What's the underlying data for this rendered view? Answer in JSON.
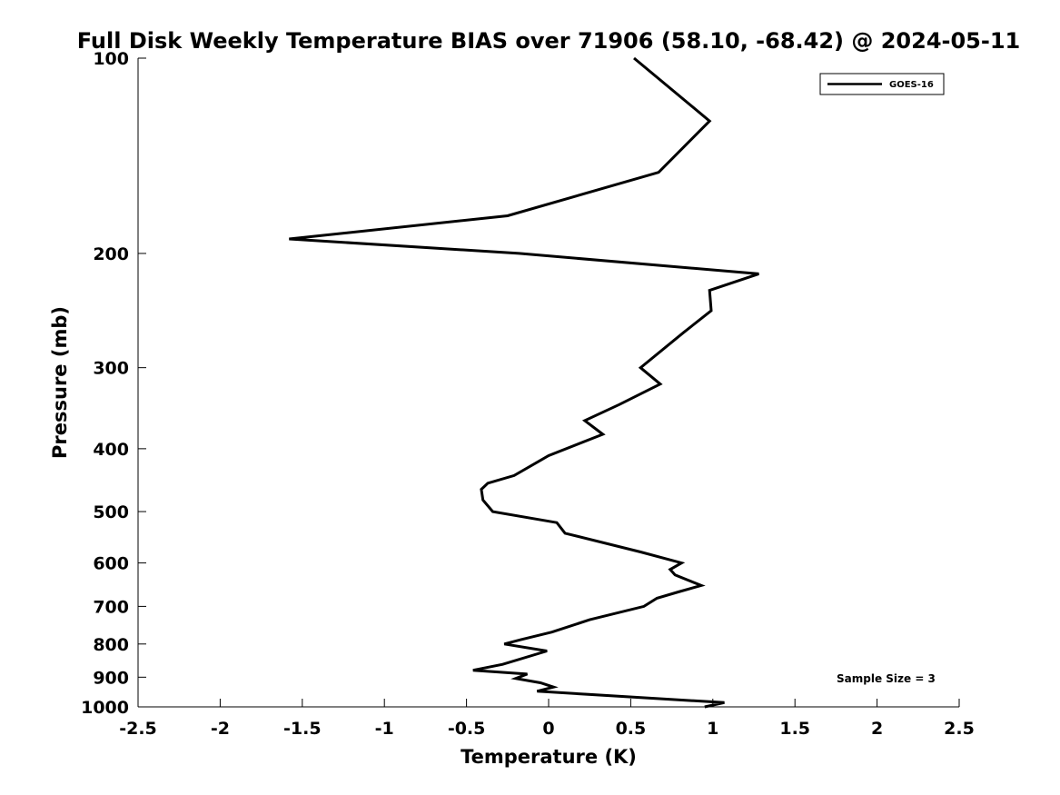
{
  "chart_data": {
    "type": "line",
    "title": "Full Disk Weekly Temperature BIAS over 71906 (58.10, -68.42) @ 2024-05-11",
    "xlabel": "Temperature (K)",
    "ylabel": "Pressure (mb)",
    "xlim": [
      -2.5,
      2.5
    ],
    "ylim": [
      100,
      1000
    ],
    "y_scale": "log",
    "y_reversed": true,
    "x_ticks": [
      "-2.5",
      "-2",
      "-1.5",
      "-1",
      "-0.5",
      "0",
      "0.5",
      "1",
      "1.5",
      "2",
      "2.5"
    ],
    "y_ticks": [
      "100",
      "200",
      "300",
      "400",
      "500",
      "600",
      "700",
      "800",
      "900",
      "1000"
    ],
    "grid": false,
    "legend_position": "top-right",
    "annotation": "Sample Size = 3",
    "series": [
      {
        "name": "GOES-16",
        "color": "#000000",
        "points": [
          [
            0.52,
            100
          ],
          [
            0.98,
            125
          ],
          [
            0.67,
            150
          ],
          [
            -0.25,
            175
          ],
          [
            -1.58,
            190
          ],
          [
            -0.18,
            200
          ],
          [
            1.28,
            215
          ],
          [
            0.98,
            228
          ],
          [
            0.99,
            245
          ],
          [
            0.82,
            265
          ],
          [
            0.56,
            300
          ],
          [
            0.68,
            318
          ],
          [
            0.43,
            342
          ],
          [
            0.22,
            362
          ],
          [
            0.33,
            380
          ],
          [
            0.0,
            410
          ],
          [
            -0.21,
            440
          ],
          [
            -0.37,
            452
          ],
          [
            -0.41,
            462
          ],
          [
            -0.4,
            480
          ],
          [
            -0.34,
            500
          ],
          [
            0.05,
            520
          ],
          [
            0.1,
            540
          ],
          [
            0.56,
            577
          ],
          [
            0.81,
            600
          ],
          [
            0.74,
            614
          ],
          [
            0.77,
            626
          ],
          [
            0.93,
            650
          ],
          [
            0.79,
            665
          ],
          [
            0.66,
            680
          ],
          [
            0.58,
            700
          ],
          [
            0.25,
            734
          ],
          [
            0.02,
            767
          ],
          [
            -0.17,
            788
          ],
          [
            -0.27,
            800
          ],
          [
            -0.01,
            820
          ],
          [
            -0.28,
            860
          ],
          [
            -0.46,
            878
          ],
          [
            -0.13,
            890
          ],
          [
            -0.2,
            904
          ],
          [
            -0.05,
            918
          ],
          [
            0.03,
            932
          ],
          [
            -0.07,
            946
          ],
          [
            1.07,
            985
          ],
          [
            0.95,
            1000
          ]
        ]
      }
    ]
  }
}
